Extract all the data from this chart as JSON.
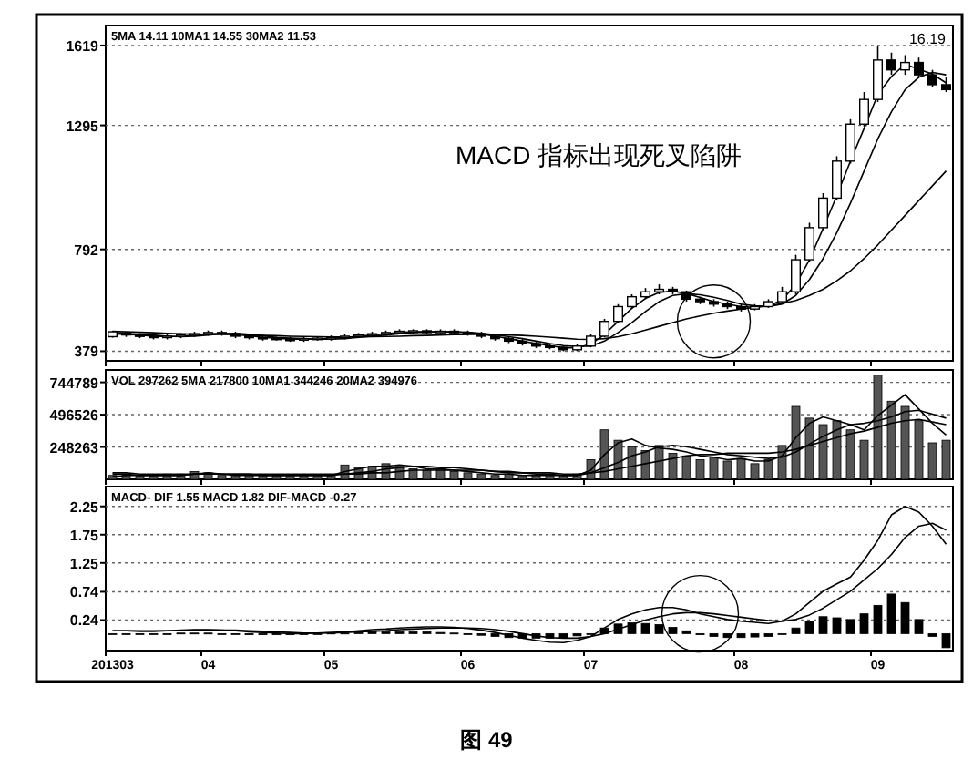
{
  "chart_data": [
    {
      "type": "candlestick",
      "color": "#000000",
      "tick_labels": "y",
      "grid": "y",
      "categories": [
        "201303",
        null,
        null,
        null,
        null,
        null,
        null,
        "04",
        null,
        null,
        null,
        null,
        null,
        null,
        null,
        null,
        "05",
        null,
        null,
        null,
        null,
        null,
        null,
        null,
        null,
        null,
        "06",
        null,
        null,
        null,
        null,
        null,
        null,
        null,
        null,
        "07",
        null,
        null,
        null,
        null,
        null,
        null,
        null,
        null,
        null,
        null,
        "08",
        null,
        null,
        null,
        null,
        null,
        null,
        null,
        null,
        null,
        "09",
        null,
        null,
        null,
        null,
        null
      ],
      "ylim": [
        340,
        1700
      ],
      "yticks": [
        379,
        792,
        1295,
        1619
      ],
      "ohlc": [
        [
          438,
          462,
          434,
          458
        ],
        [
          452,
          458,
          437,
          445
        ],
        [
          445,
          453,
          432,
          440
        ],
        [
          440,
          448,
          427,
          435
        ],
        [
          435,
          448,
          427,
          440
        ],
        [
          440,
          453,
          432,
          445
        ],
        [
          445,
          458,
          437,
          450
        ],
        [
          450,
          463,
          442,
          455
        ],
        [
          455,
          463,
          442,
          450
        ],
        [
          450,
          458,
          432,
          440
        ],
        [
          440,
          448,
          427,
          435
        ],
        [
          435,
          443,
          422,
          430
        ],
        [
          432,
          438,
          422,
          428
        ],
        [
          428,
          438,
          417,
          425
        ],
        [
          425,
          438,
          417,
          430
        ],
        [
          428,
          438,
          422,
          432
        ],
        [
          432,
          443,
          422,
          435
        ],
        [
          435,
          448,
          427,
          440
        ],
        [
          440,
          453,
          432,
          445
        ],
        [
          445,
          458,
          437,
          450
        ],
        [
          450,
          463,
          442,
          455
        ],
        [
          455,
          468,
          447,
          460
        ],
        [
          458,
          468,
          452,
          462
        ],
        [
          462,
          468,
          447,
          455
        ],
        [
          455,
          468,
          447,
          460
        ],
        [
          460,
          468,
          447,
          455
        ],
        [
          455,
          463,
          442,
          450
        ],
        [
          450,
          458,
          432,
          440
        ],
        [
          440,
          448,
          422,
          430
        ],
        [
          430,
          438,
          412,
          420
        ],
        [
          420,
          428,
          402,
          410
        ],
        [
          410,
          418,
          392,
          400
        ],
        [
          400,
          408,
          387,
          395
        ],
        [
          395,
          403,
          379,
          385
        ],
        [
          385,
          408,
          379,
          400
        ],
        [
          400,
          450,
          395,
          440
        ],
        [
          440,
          510,
          435,
          500
        ],
        [
          500,
          570,
          495,
          560
        ],
        [
          560,
          610,
          550,
          600
        ],
        [
          600,
          635,
          590,
          620
        ],
        [
          620,
          650,
          610,
          630
        ],
        [
          630,
          640,
          610,
          620
        ],
        [
          620,
          625,
          580,
          590
        ],
        [
          590,
          600,
          570,
          580
        ],
        [
          580,
          590,
          560,
          570
        ],
        [
          570,
          580,
          550,
          560
        ],
        [
          560,
          570,
          540,
          550
        ],
        [
          550,
          570,
          545,
          560
        ],
        [
          560,
          590,
          555,
          580
        ],
        [
          580,
          640,
          575,
          620
        ],
        [
          620,
          770,
          610,
          750
        ],
        [
          750,
          900,
          740,
          880
        ],
        [
          880,
          1020,
          870,
          1000
        ],
        [
          1000,
          1170,
          990,
          1150
        ],
        [
          1150,
          1320,
          1140,
          1300
        ],
        [
          1300,
          1430,
          1290,
          1400
        ],
        [
          1400,
          1619,
          1390,
          1560
        ],
        [
          1560,
          1590,
          1500,
          1520
        ],
        [
          1520,
          1580,
          1500,
          1550
        ],
        [
          1550,
          1570,
          1490,
          1500
        ],
        [
          1500,
          1520,
          1450,
          1460
        ],
        [
          1460,
          1490,
          1430,
          1440
        ]
      ],
      "series": [
        {
          "type": "line",
          "color": "#000000",
          "values": [
            450,
            447,
            445,
            440,
            438,
            440,
            445,
            450,
            452,
            448,
            442,
            435,
            432,
            428,
            428,
            428,
            432,
            435,
            440,
            445,
            450,
            455,
            458,
            458,
            458,
            457,
            455,
            448,
            440,
            430,
            420,
            410,
            402,
            393,
            393,
            408,
            447,
            500,
            553,
            593,
            617,
            623,
            613,
            597,
            580,
            570,
            560,
            557,
            563,
            587,
            650,
            750,
            877,
            1010,
            1150,
            1283,
            1420,
            1493,
            1543,
            1523,
            1503,
            1467
          ]
        },
        {
          "type": "line",
          "color": "#000000",
          "values": [
            455,
            452,
            447,
            445,
            440,
            438,
            440,
            445,
            450,
            452,
            448,
            442,
            435,
            432,
            430,
            428,
            428,
            430,
            435,
            440,
            445,
            450,
            455,
            457,
            458,
            458,
            456,
            452,
            446,
            438,
            430,
            420,
            410,
            402,
            398,
            400,
            420,
            455,
            495,
            540,
            580,
            605,
            612,
            608,
            598,
            585,
            570,
            563,
            560,
            570,
            605,
            670,
            755,
            860,
            980,
            1110,
            1240,
            1350,
            1440,
            1490,
            1510,
            1500
          ]
        },
        {
          "type": "line",
          "color": "#000000",
          "values": [
            460,
            458,
            456,
            454,
            452,
            450,
            449,
            448,
            447,
            446,
            444,
            443,
            442,
            440,
            439,
            438,
            437,
            437,
            437,
            438,
            439,
            440,
            442,
            443,
            445,
            446,
            447,
            447,
            446,
            445,
            443,
            440,
            436,
            432,
            428,
            427,
            430,
            438,
            450,
            465,
            480,
            495,
            510,
            522,
            533,
            542,
            550,
            557,
            564,
            572,
            585,
            605,
            630,
            665,
            705,
            755,
            810,
            870,
            930,
            990,
            1050,
            1110
          ]
        }
      ],
      "annotations": [
        "5MA 14.11  10MA1 14.55  30MA2 11.53",
        "MACD 指标出现死叉陷阱",
        "16.19"
      ]
    },
    {
      "type": "bar",
      "tick_labels": "y",
      "grid": "y",
      "categories": [
        "201303",
        null,
        null,
        null,
        null,
        null,
        null,
        "04",
        null,
        null,
        null,
        null,
        null,
        null,
        null,
        null,
        "05",
        null,
        null,
        null,
        null,
        null,
        null,
        null,
        null,
        null,
        "06",
        null,
        null,
        null,
        null,
        null,
        null,
        null,
        null,
        "07",
        null,
        null,
        null,
        null,
        null,
        null,
        null,
        null,
        null,
        null,
        "08",
        null,
        null,
        null,
        null,
        null,
        null,
        null,
        null,
        null,
        "09",
        null,
        null,
        null,
        null,
        null
      ],
      "ylim": [
        0,
        840000
      ],
      "yticks": [
        248263,
        496526,
        744789
      ],
      "series": [
        {
          "type": "bar",
          "color": "#555555",
          "values": [
            30000,
            30000,
            30000,
            30000,
            40000,
            40000,
            60000,
            50000,
            30000,
            30000,
            30000,
            30000,
            30000,
            30000,
            30000,
            30000,
            30000,
            110000,
            90000,
            100000,
            120000,
            100000,
            80000,
            70000,
            80000,
            60000,
            50000,
            40000,
            30000,
            40000,
            30000,
            30000,
            30000,
            30000,
            40000,
            150000,
            380000,
            300000,
            250000,
            220000,
            260000,
            200000,
            180000,
            150000,
            170000,
            140000,
            160000,
            120000,
            150000,
            260000,
            560000,
            470000,
            420000,
            450000,
            380000,
            300000,
            800000,
            600000,
            560000,
            450000,
            280000,
            300000
          ]
        },
        {
          "type": "line",
          "color": "#000000",
          "values": [
            20000,
            30000,
            30000,
            30000,
            30000,
            30000,
            40000,
            50000,
            40000,
            30000,
            30000,
            30000,
            30000,
            30000,
            30000,
            30000,
            30000,
            60000,
            80000,
            100000,
            100000,
            110000,
            100000,
            80000,
            80000,
            70000,
            60000,
            50000,
            40000,
            40000,
            30000,
            30000,
            30000,
            30000,
            30000,
            70000,
            190000,
            280000,
            310000,
            260000,
            240000,
            230000,
            210000,
            180000,
            170000,
            150000,
            160000,
            140000,
            140000,
            180000,
            320000,
            430000,
            480000,
            450000,
            420000,
            380000,
            490000,
            570000,
            650000,
            540000,
            430000,
            340000
          ]
        },
        {
          "type": "line",
          "color": "#000000",
          "values": [
            40000,
            40000,
            30000,
            30000,
            30000,
            30000,
            40000,
            40000,
            40000,
            40000,
            40000,
            30000,
            30000,
            30000,
            30000,
            30000,
            30000,
            40000,
            50000,
            60000,
            80000,
            90000,
            100000,
            100000,
            90000,
            90000,
            80000,
            70000,
            60000,
            50000,
            50000,
            40000,
            40000,
            30000,
            30000,
            50000,
            90000,
            130000,
            180000,
            210000,
            250000,
            260000,
            250000,
            230000,
            210000,
            190000,
            180000,
            170000,
            160000,
            170000,
            210000,
            270000,
            330000,
            380000,
            420000,
            430000,
            450000,
            480000,
            520000,
            530000,
            500000,
            470000
          ]
        },
        {
          "type": "line",
          "color": "#000000",
          "values": [
            50000,
            50000,
            40000,
            40000,
            40000,
            40000,
            40000,
            40000,
            40000,
            40000,
            40000,
            40000,
            40000,
            40000,
            40000,
            40000,
            40000,
            40000,
            40000,
            50000,
            50000,
            60000,
            70000,
            70000,
            70000,
            70000,
            70000,
            70000,
            60000,
            60000,
            50000,
            50000,
            50000,
            40000,
            40000,
            50000,
            60000,
            80000,
            100000,
            120000,
            140000,
            160000,
            180000,
            190000,
            190000,
            200000,
            200000,
            200000,
            200000,
            210000,
            230000,
            260000,
            290000,
            320000,
            350000,
            370000,
            400000,
            430000,
            450000,
            460000,
            440000,
            420000
          ]
        }
      ],
      "annotations": [
        "VOL 297262  5MA 217800  10MA1 344246  20MA2 394976"
      ]
    },
    {
      "type": "line",
      "grid": "y",
      "categories": [
        "201303",
        null,
        null,
        null,
        null,
        null,
        null,
        "04",
        null,
        null,
        null,
        null,
        null,
        null,
        null,
        null,
        "05",
        null,
        null,
        null,
        null,
        null,
        null,
        null,
        null,
        null,
        "06",
        null,
        null,
        null,
        null,
        null,
        null,
        null,
        null,
        "07",
        null,
        null,
        null,
        null,
        null,
        null,
        null,
        null,
        null,
        null,
        "08",
        null,
        null,
        null,
        null,
        null,
        null,
        null,
        null,
        null,
        "09",
        null,
        null,
        null,
        null,
        null
      ],
      "ylim": [
        -0.3,
        2.6
      ],
      "yticks": [
        0.24,
        0.74,
        1.25,
        1.75,
        2.25
      ],
      "series": [
        {
          "type": "line",
          "color": "#000000",
          "values": [
            0.05,
            0.05,
            0.04,
            0.04,
            0.05,
            0.06,
            0.07,
            0.07,
            0.06,
            0.05,
            0.03,
            0.02,
            0.01,
            0.0,
            0.0,
            0.01,
            0.02,
            0.03,
            0.05,
            0.07,
            0.08,
            0.1,
            0.11,
            0.12,
            0.12,
            0.11,
            0.09,
            0.06,
            0.02,
            -0.03,
            -0.08,
            -0.12,
            -0.15,
            -0.16,
            -0.12,
            -0.05,
            0.1,
            0.25,
            0.35,
            0.42,
            0.46,
            0.46,
            0.42,
            0.35,
            0.3,
            0.25,
            0.22,
            0.2,
            0.18,
            0.22,
            0.35,
            0.55,
            0.75,
            0.88,
            1.0,
            1.3,
            1.65,
            2.1,
            2.25,
            2.15,
            1.9,
            1.58
          ]
        },
        {
          "type": "line",
          "color": "#000000",
          "values": [
            0.05,
            0.05,
            0.05,
            0.05,
            0.05,
            0.05,
            0.06,
            0.06,
            0.06,
            0.06,
            0.05,
            0.04,
            0.03,
            0.02,
            0.01,
            0.01,
            0.01,
            0.02,
            0.03,
            0.04,
            0.05,
            0.07,
            0.08,
            0.09,
            0.1,
            0.1,
            0.1,
            0.09,
            0.07,
            0.04,
            0.0,
            -0.04,
            -0.07,
            -0.08,
            -0.08,
            -0.05,
            0.0,
            0.08,
            0.16,
            0.24,
            0.3,
            0.35,
            0.37,
            0.37,
            0.35,
            0.32,
            0.29,
            0.26,
            0.23,
            0.22,
            0.25,
            0.33,
            0.45,
            0.6,
            0.75,
            0.95,
            1.15,
            1.4,
            1.7,
            1.9,
            1.95,
            1.83
          ]
        },
        {
          "type": "bar",
          "color": "#000000",
          "values": [
            0,
            0,
            -0.01,
            -0.01,
            0,
            0.01,
            0.01,
            0.01,
            0,
            -0.01,
            -0.02,
            -0.02,
            -0.02,
            -0.02,
            -0.01,
            0,
            0.01,
            0.01,
            0.02,
            0.03,
            0.03,
            0.03,
            0.03,
            0.03,
            0.02,
            0.01,
            -0.01,
            -0.03,
            -0.05,
            -0.07,
            -0.08,
            -0.08,
            -0.08,
            -0.08,
            -0.04,
            0,
            0.1,
            0.17,
            0.19,
            0.18,
            0.16,
            0.11,
            0.05,
            -0.02,
            -0.05,
            -0.07,
            -0.07,
            -0.06,
            -0.05,
            0,
            0.1,
            0.22,
            0.3,
            0.28,
            0.25,
            0.35,
            0.5,
            0.7,
            0.55,
            0.25,
            -0.05,
            -0.25
          ]
        }
      ],
      "annotations": [
        "MACD- DIF 1.55  MACD 1.82  DIF-MACD -0.27",
        "图 49"
      ]
    }
  ]
}
